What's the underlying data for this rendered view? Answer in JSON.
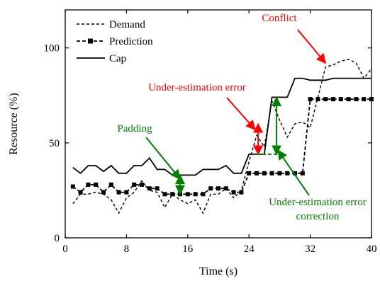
{
  "chart_data": {
    "type": "line",
    "xlabel": "Time (s)",
    "ylabel": "Resource (%)",
    "xlim": [
      0,
      40
    ],
    "ylim": [
      0,
      120
    ],
    "xticks": [
      0,
      8,
      16,
      24,
      32,
      40
    ],
    "yticks": [
      0,
      50,
      100
    ],
    "grid": false,
    "legend_position": "top-left",
    "series": [
      {
        "name": "Demand",
        "style": "dashed",
        "x": [
          1,
          2,
          3,
          4,
          5,
          6,
          7,
          8,
          9,
          10,
          11,
          12,
          13,
          14,
          15,
          16,
          17,
          18,
          19,
          20,
          21,
          22,
          23,
          24,
          25,
          26,
          27,
          28,
          29,
          30,
          31,
          32,
          33,
          34,
          35,
          36,
          37,
          38,
          39,
          40
        ],
        "values": [
          18,
          23,
          23,
          24,
          23,
          20,
          13,
          21,
          24,
          30,
          25,
          24,
          16,
          23,
          20,
          18,
          20,
          13,
          23,
          23,
          26,
          21,
          25,
          40,
          54,
          48,
          72,
          62,
          53,
          60,
          61,
          58,
          74,
          90,
          91,
          93,
          94,
          92,
          84,
          89
        ]
      },
      {
        "name": "Prediction",
        "style": "dashed-square",
        "x": [
          1,
          2,
          3,
          4,
          5,
          6,
          7,
          8,
          9,
          10,
          11,
          12,
          13,
          14,
          15,
          16,
          17,
          18,
          19,
          20,
          21,
          22,
          23,
          24,
          25,
          26,
          27,
          28,
          29,
          30,
          31,
          32,
          33,
          34,
          35,
          36,
          37,
          38,
          39,
          40
        ],
        "values": [
          27,
          24,
          28,
          28,
          24,
          28,
          24,
          24,
          28,
          28,
          26,
          26,
          23,
          23,
          23,
          23,
          23,
          23,
          26,
          26,
          26,
          24,
          24,
          34,
          34,
          34,
          34,
          34,
          34,
          34,
          34,
          73,
          73,
          73,
          73,
          73,
          73,
          73,
          73,
          73
        ]
      },
      {
        "name": "Cap",
        "style": "solid",
        "x": [
          1,
          2,
          3,
          4,
          5,
          6,
          7,
          8,
          9,
          10,
          11,
          12,
          13,
          14,
          15,
          16,
          17,
          18,
          19,
          20,
          21,
          22,
          23,
          24,
          25,
          26,
          27,
          28,
          29,
          30,
          31,
          32,
          33,
          34,
          35,
          36,
          37,
          38,
          39,
          40
        ],
        "values": [
          37,
          34,
          38,
          38,
          35,
          38,
          34,
          34,
          38,
          38,
          42,
          36,
          36,
          33,
          33,
          33,
          33,
          36,
          36,
          36,
          38,
          34,
          34,
          44,
          44,
          44,
          74,
          74,
          74,
          84,
          84,
          83,
          83,
          83,
          84,
          84,
          84,
          84,
          84,
          84
        ]
      }
    ],
    "annotations": [
      {
        "text": "Conflict",
        "color": "#ff0000",
        "target_x": 34,
        "target_y": 92
      },
      {
        "text": "Under-estimation error",
        "color": "#ff0000",
        "target_x": 24.8,
        "target_y": 57
      },
      {
        "text": "Padding",
        "color": "#008000",
        "target_x": 15,
        "target_y": 31
      },
      {
        "text": "Under-estimation error",
        "text2": "correction",
        "color": "#008000",
        "target_x": 27.8,
        "target_y": 46
      }
    ],
    "markers": [
      {
        "type": "double-arrow",
        "color": "#ff0000",
        "x": 25.2,
        "y1": 44,
        "y2": 60
      },
      {
        "type": "double-arrow",
        "color": "#008000",
        "x": 27.6,
        "y1": 44,
        "y2": 74
      },
      {
        "type": "double-arrow",
        "color": "#008000",
        "x": 15,
        "y1": 23,
        "y2": 33
      },
      {
        "type": "dashed-line",
        "color": "#008000",
        "x1": 25,
        "x2": 28.5,
        "y": 44
      }
    ]
  }
}
